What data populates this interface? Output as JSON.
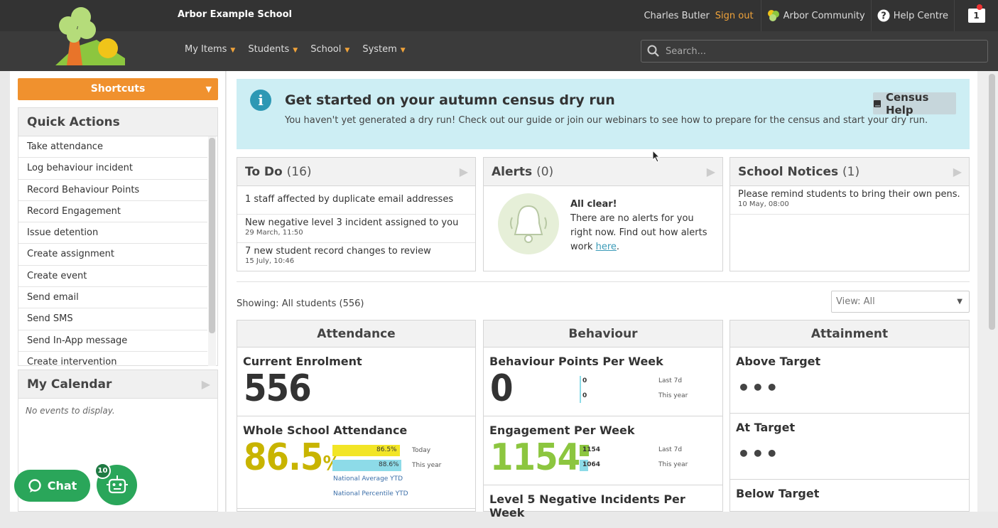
{
  "header": {
    "school_name": "Arbor Example School",
    "user_name": "Charles Butler",
    "sign_out": "Sign out",
    "community": "Arbor Community",
    "help": "Help Centre",
    "notifications": "1",
    "nav": [
      "My Items",
      "Students",
      "School",
      "System"
    ],
    "search_placeholder": "Search..."
  },
  "sidebar": {
    "shortcuts": "Shortcuts",
    "quick_actions_title": "Quick Actions",
    "quick_actions": [
      "Take attendance",
      "Log behaviour incident",
      "Record Behaviour Points",
      "Record Engagement",
      "Issue detention",
      "Create assignment",
      "Create event",
      "Send email",
      "Send SMS",
      "Send In-App message",
      "Create intervention"
    ],
    "calendar_title": "My Calendar",
    "calendar_empty": "No events to display.",
    "chat_label": "Chat",
    "bot_badge": "10"
  },
  "banner": {
    "title": "Get started on your autumn census dry run",
    "text": "You haven't yet generated a dry run! Check out our guide or join our webinars to see how to prepare for the census and start your dry run.",
    "button": "Census Help"
  },
  "todo": {
    "title": "To Do",
    "count": "(16)",
    "items": [
      {
        "text": "1 staff affected by duplicate email addresses",
        "date": ""
      },
      {
        "text": "New negative level 3 incident assigned to you",
        "date": "29 March, 11:50"
      },
      {
        "text": "7 new student record changes to review",
        "date": "15 July, 10:46"
      }
    ]
  },
  "alerts": {
    "title": "Alerts",
    "count": "(0)",
    "heading": "All clear!",
    "text": "There are no alerts for you right now. Find out how alerts work",
    "link": "here"
  },
  "notices": {
    "title": "School Notices",
    "count": "(1)",
    "items": [
      {
        "text": "Please remind students to bring their own pens.",
        "date": "10 May, 08:00"
      }
    ]
  },
  "dashboard": {
    "showing": "Showing: All students (556)",
    "view": "View: All",
    "attendance": {
      "title": "Attendance",
      "enrolment_title": "Current Enrolment",
      "enrolment_value": "556",
      "whole_title": "Whole School Attendance",
      "whole_value": "86.5",
      "whole_unit": "%",
      "today_value": "86.5%",
      "today_label": "Today",
      "today_fraction": 0.865,
      "year_value": "88.6%",
      "year_label": "This year",
      "year_fraction": 0.886,
      "national_avg": "National Average YTD",
      "national_pct": "National Percentile YTD"
    },
    "behaviour": {
      "title": "Behaviour",
      "points_title": "Behaviour Points Per Week",
      "points_value": "0",
      "points_7d": "0",
      "points_year": "0",
      "label_7d": "Last 7d",
      "label_year": "This year",
      "engagement_title": "Engagement Per Week",
      "engagement_value": "1154",
      "engagement_7d": "1154",
      "engagement_year": "1064",
      "negative_title": "Level 5 Negative Incidents Per Week"
    },
    "attainment": {
      "title": "Attainment",
      "above": "Above Target",
      "at": "At Target",
      "below": "Below Target",
      "dots": "•••"
    }
  },
  "colors": {
    "orange": "#f0912e",
    "green": "#2aa65a",
    "attendance_yellow": "#c8b400",
    "engagement_green": "#8cc63f",
    "bar_yellow": "#f2e526",
    "bar_cyan": "#8ddbe8"
  }
}
